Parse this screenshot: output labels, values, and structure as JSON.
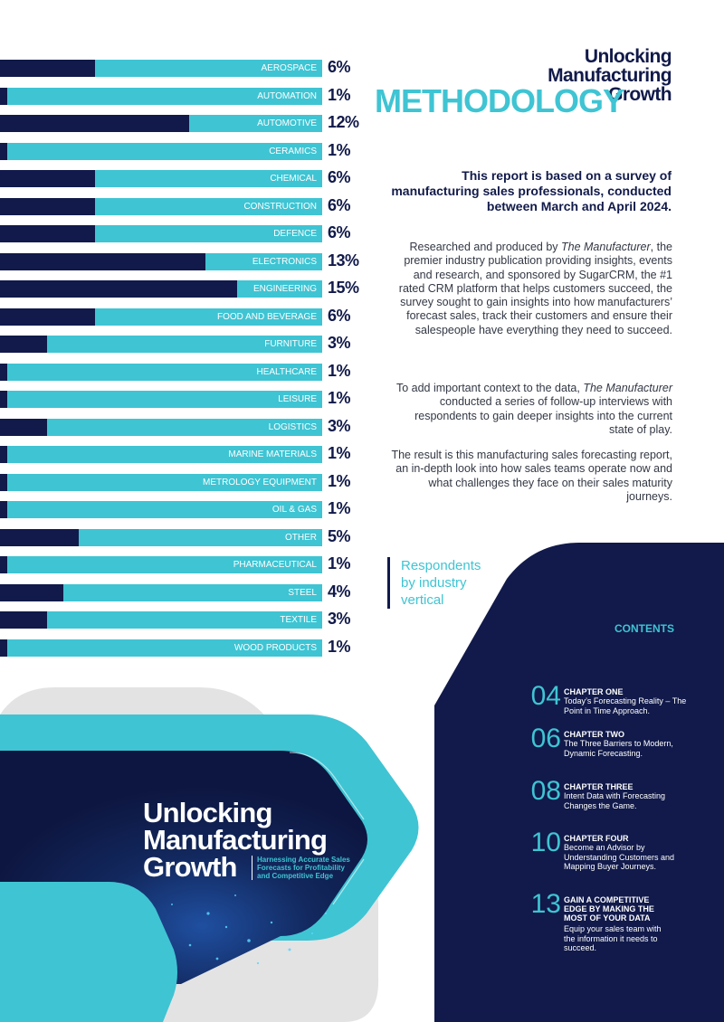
{
  "logo": {
    "line1": "Unlocking",
    "line2": "Manufacturing",
    "line3": "Growth"
  },
  "heading": "METHODOLOGY",
  "colors": {
    "navy": "#111a4a",
    "teal": "#3fc4d3"
  },
  "chart_data": {
    "type": "bar",
    "categories": [
      "AEROSPACE",
      "AUTOMATION",
      "AUTOMOTIVE",
      "CERAMICS",
      "CHEMICAL",
      "CONSTRUCTION",
      "DEFENCE",
      "ELECTRONICS",
      "ENGINEERING",
      "FOOD AND BEVERAGE",
      "FURNITURE",
      "HEALTHCARE",
      "LEISURE",
      "LOGISTICS",
      "MARINE MATERIALS",
      "METROLOGY EQUIPMENT",
      "OIL & GAS",
      "OTHER",
      "PHARMACEUTICAL",
      "STEEL",
      "TEXTILE",
      "WOOD PRODUCTS"
    ],
    "values": [
      6,
      1,
      12,
      1,
      6,
      6,
      6,
      13,
      15,
      6,
      3,
      1,
      1,
      3,
      1,
      1,
      1,
      5,
      1,
      4,
      3,
      1
    ],
    "labels": [
      "6%",
      "1%",
      "12%",
      "1%",
      "6%",
      "6%",
      "6%",
      "13%",
      "15%",
      "6%",
      "3%",
      "1%",
      "1%",
      "3%",
      "1%",
      "1%",
      "1%",
      "5%",
      "1%",
      "4%",
      "3%",
      "1%"
    ],
    "orientation": "horizontal",
    "max_value": 15
  },
  "intro": "This report is based on a survey of manufacturing sales professionals, conducted between March and April 2024.",
  "paragraphs": {
    "p1_a": "Researched and produced by ",
    "p1_em": "The Manufacturer",
    "p1_b": ", the premier industry publication providing insights, events and research, and sponsored by SugarCRM, the #1 rated CRM platform that helps customers succeed, the survey sought to gain insights into how manufacturers’ forecast sales, track their customers and ensure their salespeople have everything they need to succeed.",
    "p2_a": "To add important context to the data, ",
    "p2_em": "The Manufacturer",
    "p2_b": " conducted a series of follow-up interviews with respondents to gain deeper insights into the current state of play.",
    "p3": "The result is this manufacturing sales forecasting report, an in-depth look into how sales teams operate now and what challenges they face on their sales maturity journeys."
  },
  "respondents": {
    "line1": "Respondents",
    "line2": "by industry",
    "line3": "vertical"
  },
  "contents": {
    "title": "CONTENTS",
    "chapters": [
      {
        "num": "04",
        "title": "CHAPTER ONE",
        "desc": "Today’s Forecasting Reality – The Point in Time Approach."
      },
      {
        "num": "06",
        "title": "CHAPTER TWO",
        "desc": "The Three Barriers to Modern, Dynamic Forecasting."
      },
      {
        "num": "08",
        "title": "CHAPTER THREE",
        "desc": "Intent Data with Forecasting Changes the Game."
      },
      {
        "num": "10",
        "title": "CHAPTER FOUR",
        "desc": "Become an Advisor by Understanding Customers and Mapping Buyer Journeys."
      },
      {
        "num": "13",
        "title": "GAIN A COMPETITIVE EDGE BY MAKING THE MOST OF YOUR DATA",
        "desc": "Equip your sales team with the information it needs to succeed."
      }
    ]
  },
  "cover": {
    "line1": "Unlocking",
    "line2": "Manufacturing",
    "line3": "Growth",
    "subtitle": "Harnessing Accurate Sales Forecasts for Profitability and Competitive Edge"
  }
}
